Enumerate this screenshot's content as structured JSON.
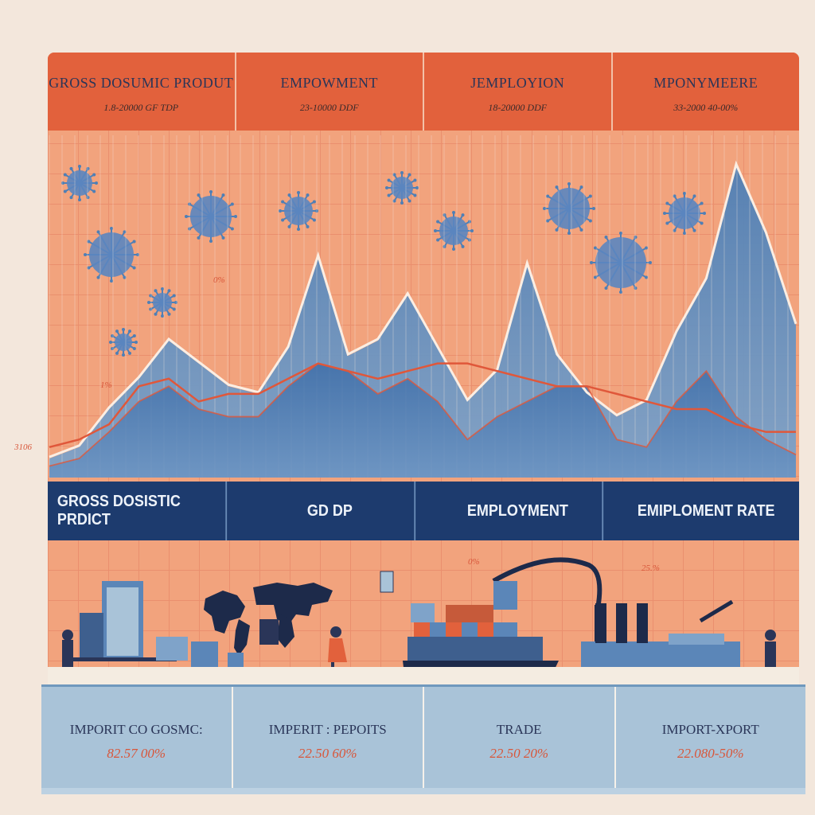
{
  "header": {
    "cells": [
      {
        "title": "GROSS DOSUMIC PRODUT",
        "sub": "1.8-20000 GF TDP"
      },
      {
        "title": "EMPOWMENT",
        "sub": "23-10000 DDF"
      },
      {
        "title": "JEMPLOYION",
        "sub": "18-20000 DDF"
      },
      {
        "title": "MPONYMEERE",
        "sub": "33-2000 40-00%"
      }
    ]
  },
  "middle_band": {
    "labels": [
      "GROSS DOSISTIC PRDICT",
      "GD DP",
      "EMPLOYMENT",
      "EMIPLOMENT RATE"
    ]
  },
  "bottom": {
    "cells": [
      {
        "title": "IMPORIT CO GOSMC:",
        "value": "82.57 00%"
      },
      {
        "title": "IMPERIT : PEPOITS",
        "value": "22.50 60%"
      },
      {
        "title": "TRADE",
        "value": "22.50 20%"
      },
      {
        "title": "IMPORT-XPORT",
        "value": "22.080-50%"
      }
    ]
  },
  "annotations": {
    "left_axis": "3106",
    "tick_a": "0%",
    "tick_b": "1%",
    "tick_c": "0%",
    "tick_d": "25.%"
  },
  "colors": {
    "orange": "#e2613c",
    "navy": "#1d3b6e",
    "blue_area": "#5b86b8",
    "red_line": "#e0573a",
    "panel_bg": "#f2a37d"
  },
  "chart_data": {
    "type": "area",
    "x": [
      0,
      1,
      2,
      3,
      4,
      5,
      6,
      7,
      8,
      9,
      10,
      11,
      12,
      13,
      14,
      15,
      16,
      17,
      18,
      19,
      20,
      21,
      22,
      23,
      24,
      25
    ],
    "series": [
      {
        "values": [
          2.5,
          4,
          9,
          13,
          18,
          15,
          12,
          11,
          17,
          29,
          16,
          18,
          24,
          17,
          10,
          14,
          28,
          16,
          11,
          8,
          10,
          19,
          26,
          41,
          32,
          20
        ]
      },
      {
        "values": [
          1.5,
          2.5,
          6,
          10,
          12,
          9,
          8,
          8,
          12,
          15,
          14,
          11,
          13,
          10,
          5,
          8,
          10,
          12,
          12,
          5,
          4,
          10,
          14,
          8,
          5,
          3
        ]
      },
      {
        "values": [
          4,
          5,
          7,
          12,
          13,
          10,
          11,
          11,
          13,
          15,
          14,
          13,
          14,
          15,
          15,
          14,
          13,
          12,
          12,
          11,
          10,
          9,
          9,
          7,
          6,
          6
        ]
      }
    ],
    "ylim": [
      0,
      45
    ]
  }
}
